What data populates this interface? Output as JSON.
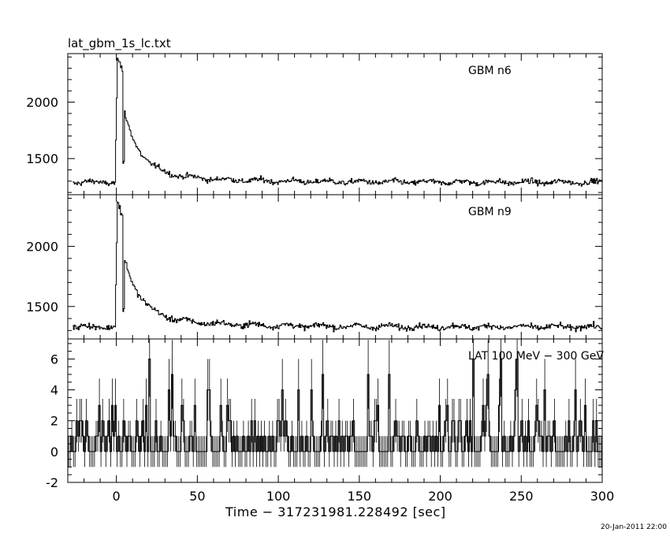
{
  "figure": {
    "file_title": "lat_gbm_1s_lc.txt",
    "timestamp": "20-Jan-2011 22:00"
  },
  "chart_data": {
    "type": "line",
    "style": "step",
    "line_color": "#000000",
    "xlabel": "Time − 317231981.228492 [sec]",
    "xlim": [
      -30,
      300
    ],
    "xticks": [
      0,
      50,
      100,
      150,
      200,
      250,
      300
    ],
    "panels": [
      {
        "name": "GBM n6",
        "ylim": [
          1180,
          2430
        ],
        "yticks": [
          1500,
          2000
        ],
        "baseline": 1290,
        "noise": 28,
        "pulse": {
          "peak_time": 1,
          "peak_value": 2410,
          "decay": 10,
          "tail_level": 1380
        },
        "approx_values": [
          {
            "t": -20,
            "v": 1290
          },
          {
            "t": 0,
            "v": 1400
          },
          {
            "t": 1,
            "v": 2410
          },
          {
            "t": 3,
            "v": 2250
          },
          {
            "t": 5,
            "v": 1800
          },
          {
            "t": 10,
            "v": 1600
          },
          {
            "t": 20,
            "v": 1430
          },
          {
            "t": 40,
            "v": 1360
          },
          {
            "t": 100,
            "v": 1300
          },
          {
            "t": 200,
            "v": 1290
          },
          {
            "t": 300,
            "v": 1290
          }
        ]
      },
      {
        "name": "GBM n9",
        "ylim": [
          1230,
          2430
        ],
        "yticks": [
          1500,
          2000
        ],
        "baseline": 1330,
        "noise": 28,
        "pulse": {
          "peak_time": 1,
          "peak_value": 2380,
          "decay": 10,
          "tail_level": 1420
        },
        "approx_values": [
          {
            "t": -20,
            "v": 1330
          },
          {
            "t": 0,
            "v": 1450
          },
          {
            "t": 1,
            "v": 2380
          },
          {
            "t": 3,
            "v": 2300
          },
          {
            "t": 5,
            "v": 1800
          },
          {
            "t": 10,
            "v": 1650
          },
          {
            "t": 20,
            "v": 1450
          },
          {
            "t": 40,
            "v": 1400
          },
          {
            "t": 100,
            "v": 1340
          },
          {
            "t": 200,
            "v": 1330
          },
          {
            "t": 300,
            "v": 1330
          }
        ]
      },
      {
        "name": "LAT 100 MeV − 300 GeV",
        "ylim": [
          -2,
          7.3
        ],
        "yticks": [
          -2,
          0,
          2,
          4,
          6
        ],
        "counts_max": 6,
        "error_bar_min": -1
      }
    ]
  }
}
